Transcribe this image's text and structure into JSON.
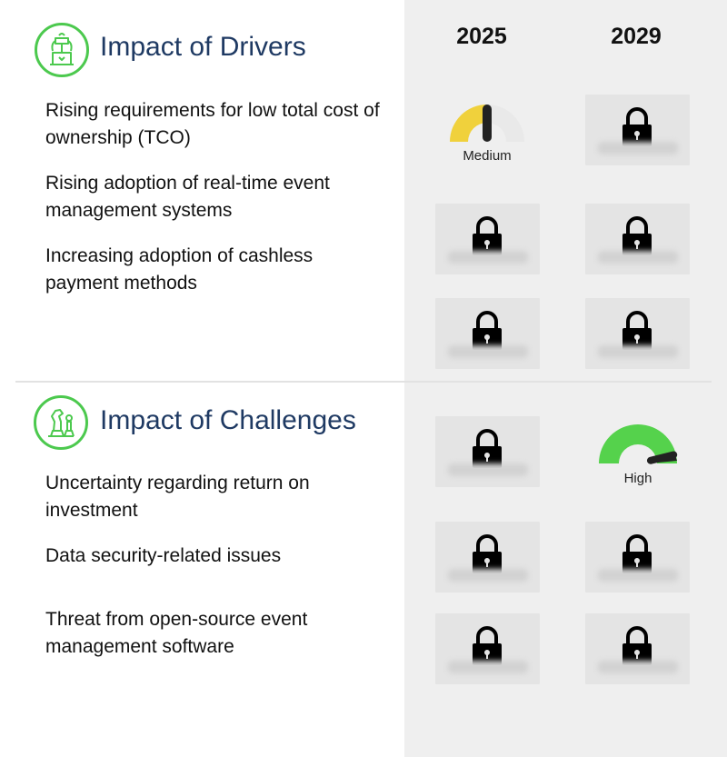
{
  "years": [
    "2025",
    "2029"
  ],
  "drivers": {
    "title": "Impact of Drivers",
    "icon": "fountain-icon",
    "items": [
      {
        "text": "Rising requirements for low total cost of ownership (TCO)",
        "y2025": "Medium",
        "y2029": "locked"
      },
      {
        "text": "Rising adoption of real-time event management systems",
        "y2025": "locked",
        "y2029": "locked"
      },
      {
        "text": "Increasing adoption of cashless payment methods",
        "y2025": "locked",
        "y2029": "locked"
      }
    ]
  },
  "challenges": {
    "title": "Impact of Challenges",
    "icon": "chess-pieces-icon",
    "items": [
      {
        "text": "Uncertainty regarding return on investment",
        "y2025": "locked",
        "y2029": "High"
      },
      {
        "text": "Data security-related issues",
        "y2025": "locked",
        "y2029": "locked"
      },
      {
        "text": "Threat from open-source event management software",
        "y2025": "locked",
        "y2029": "locked"
      }
    ]
  },
  "gauges": {
    "medium": {
      "label": "Medium",
      "level": 0.5,
      "color": "#f0d13c"
    },
    "high": {
      "label": "High",
      "level": 1.0,
      "color": "#55d24c"
    }
  },
  "colors": {
    "accent_green": "#4cc94e",
    "title_blue": "#1f3a63",
    "panel_gray": "#efefef"
  }
}
